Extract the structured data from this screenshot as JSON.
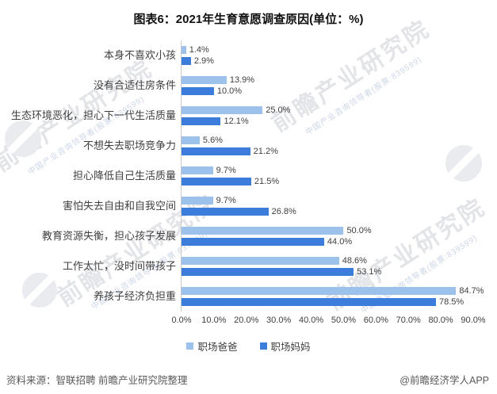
{
  "title": "图表6：2021年生育意愿调查原因(单位：%)",
  "chart_data": {
    "type": "bar",
    "orientation": "horizontal",
    "title": "图表6：2021年生育意愿调查原因(单位：%)",
    "categories": [
      "本身不喜欢小孩",
      "没有合适住房条件",
      "生态环境恶化，担心下一代生活质量",
      "不想失去职场竞争力",
      "担心降低自己生活质量",
      "害怕失去自由和自我空间",
      "教育资源失衡，担心孩子发展",
      "工作太忙，没时间带孩子",
      "养孩子经济负担重"
    ],
    "series": [
      {
        "name": "职场爸爸",
        "color": "#9cc2eb",
        "values": [
          1.4,
          13.9,
          25.0,
          5.6,
          9.7,
          9.7,
          50.0,
          48.6,
          84.7
        ]
      },
      {
        "name": "职场妈妈",
        "color": "#3c7ddb",
        "values": [
          2.9,
          10.0,
          12.1,
          21.2,
          21.5,
          26.8,
          44.0,
          53.1,
          78.5
        ]
      }
    ],
    "xlim": [
      0,
      90
    ],
    "x_ticks": [
      "0.0%",
      "10.0%",
      "20.0%",
      "30.0%",
      "40.0%",
      "50.0%",
      "60.0%",
      "70.0%",
      "80.0%",
      "90.0%"
    ],
    "value_suffix": "%",
    "grid": false,
    "legend_position": "bottom"
  },
  "legend": {
    "items": [
      {
        "label": "职场爸爸",
        "color": "#9cc2eb"
      },
      {
        "label": "职场妈妈",
        "color": "#3c7ddb"
      }
    ]
  },
  "footer": {
    "source": "资料来源：智联招聘 前瞻产业研究院整理",
    "credit": "@前瞻经济学人APP"
  },
  "watermark": {
    "brand": "前瞻产业研究院",
    "tagline": "中国产业咨询领导者(股票:839599)"
  }
}
